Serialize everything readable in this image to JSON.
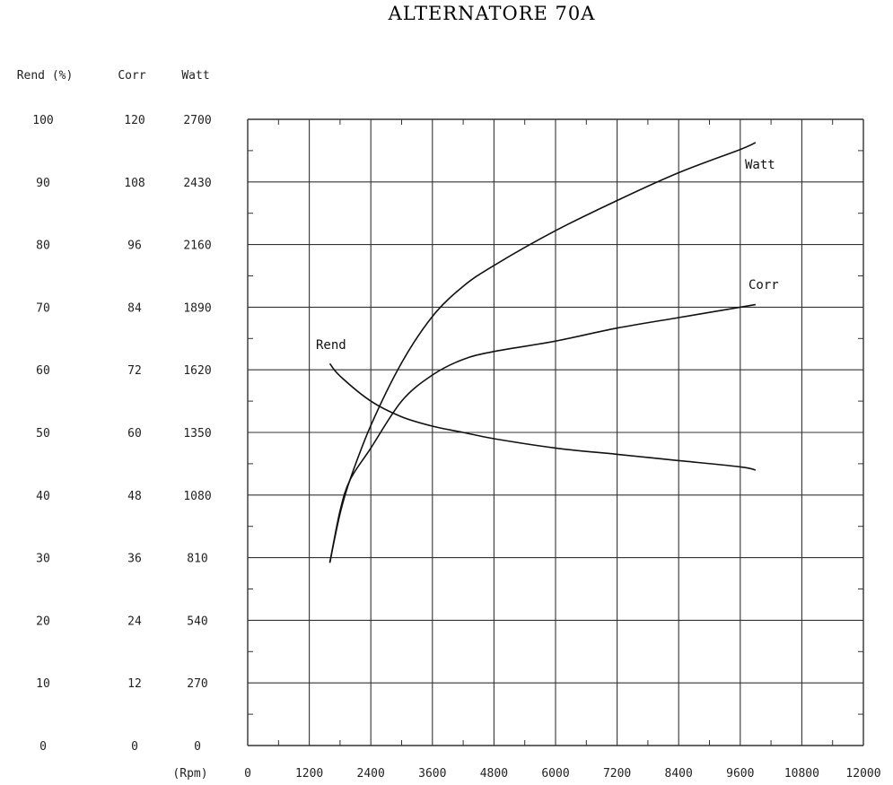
{
  "chart_data": {
    "type": "line",
    "title": "ALTERNATORE 70A",
    "xlabel": "(Rpm)",
    "x_ticks": [
      "0",
      "1200",
      "2400",
      "3600",
      "4800",
      "6000",
      "7200",
      "8400",
      "9600",
      "10800",
      "12000"
    ],
    "xlim": [
      0,
      12000
    ],
    "y_axes": [
      {
        "label": "Rend (%)",
        "ticks": [
          "0",
          "10",
          "20",
          "30",
          "40",
          "50",
          "60",
          "70",
          "80",
          "90",
          "100"
        ],
        "range": [
          0,
          100
        ]
      },
      {
        "label": "Corr",
        "ticks": [
          "0",
          "12",
          "24",
          "36",
          "48",
          "60",
          "72",
          "84",
          "96",
          "108",
          "120"
        ],
        "range": [
          0,
          120
        ]
      },
      {
        "label": "Watt",
        "ticks": [
          "0",
          "270",
          "540",
          "810",
          "1080",
          "1350",
          "1620",
          "1890",
          "2160",
          "2430",
          "2700"
        ],
        "range": [
          0,
          2700
        ]
      }
    ],
    "grid": true,
    "series": [
      {
        "name": "Watt",
        "axis": 2,
        "x": [
          1600,
          1800,
          2000,
          2400,
          3000,
          3600,
          4200,
          4800,
          6000,
          7200,
          8400,
          9600,
          9900
        ],
        "y": [
          790,
          1000,
          1150,
          1380,
          1650,
          1850,
          1980,
          2070,
          2220,
          2350,
          2470,
          2570,
          2600
        ]
      },
      {
        "name": "Corr",
        "axis": 1,
        "x": [
          1600,
          1800,
          2000,
          2400,
          3000,
          3600,
          4200,
          4800,
          6000,
          7200,
          8400,
          9600,
          9900
        ],
        "y": [
          35,
          45,
          51,
          57,
          66,
          71,
          74,
          75.5,
          77.5,
          80,
          82,
          84,
          84.5
        ]
      },
      {
        "name": "Rend",
        "axis": 0,
        "x": [
          1600,
          1800,
          2400,
          3000,
          3600,
          4200,
          4800,
          6000,
          7200,
          8400,
          9600,
          9900
        ],
        "y": [
          61,
          59,
          55,
          52.5,
          51,
          50,
          49,
          47.5,
          46.5,
          45.5,
          44.5,
          44
        ]
      }
    ]
  }
}
